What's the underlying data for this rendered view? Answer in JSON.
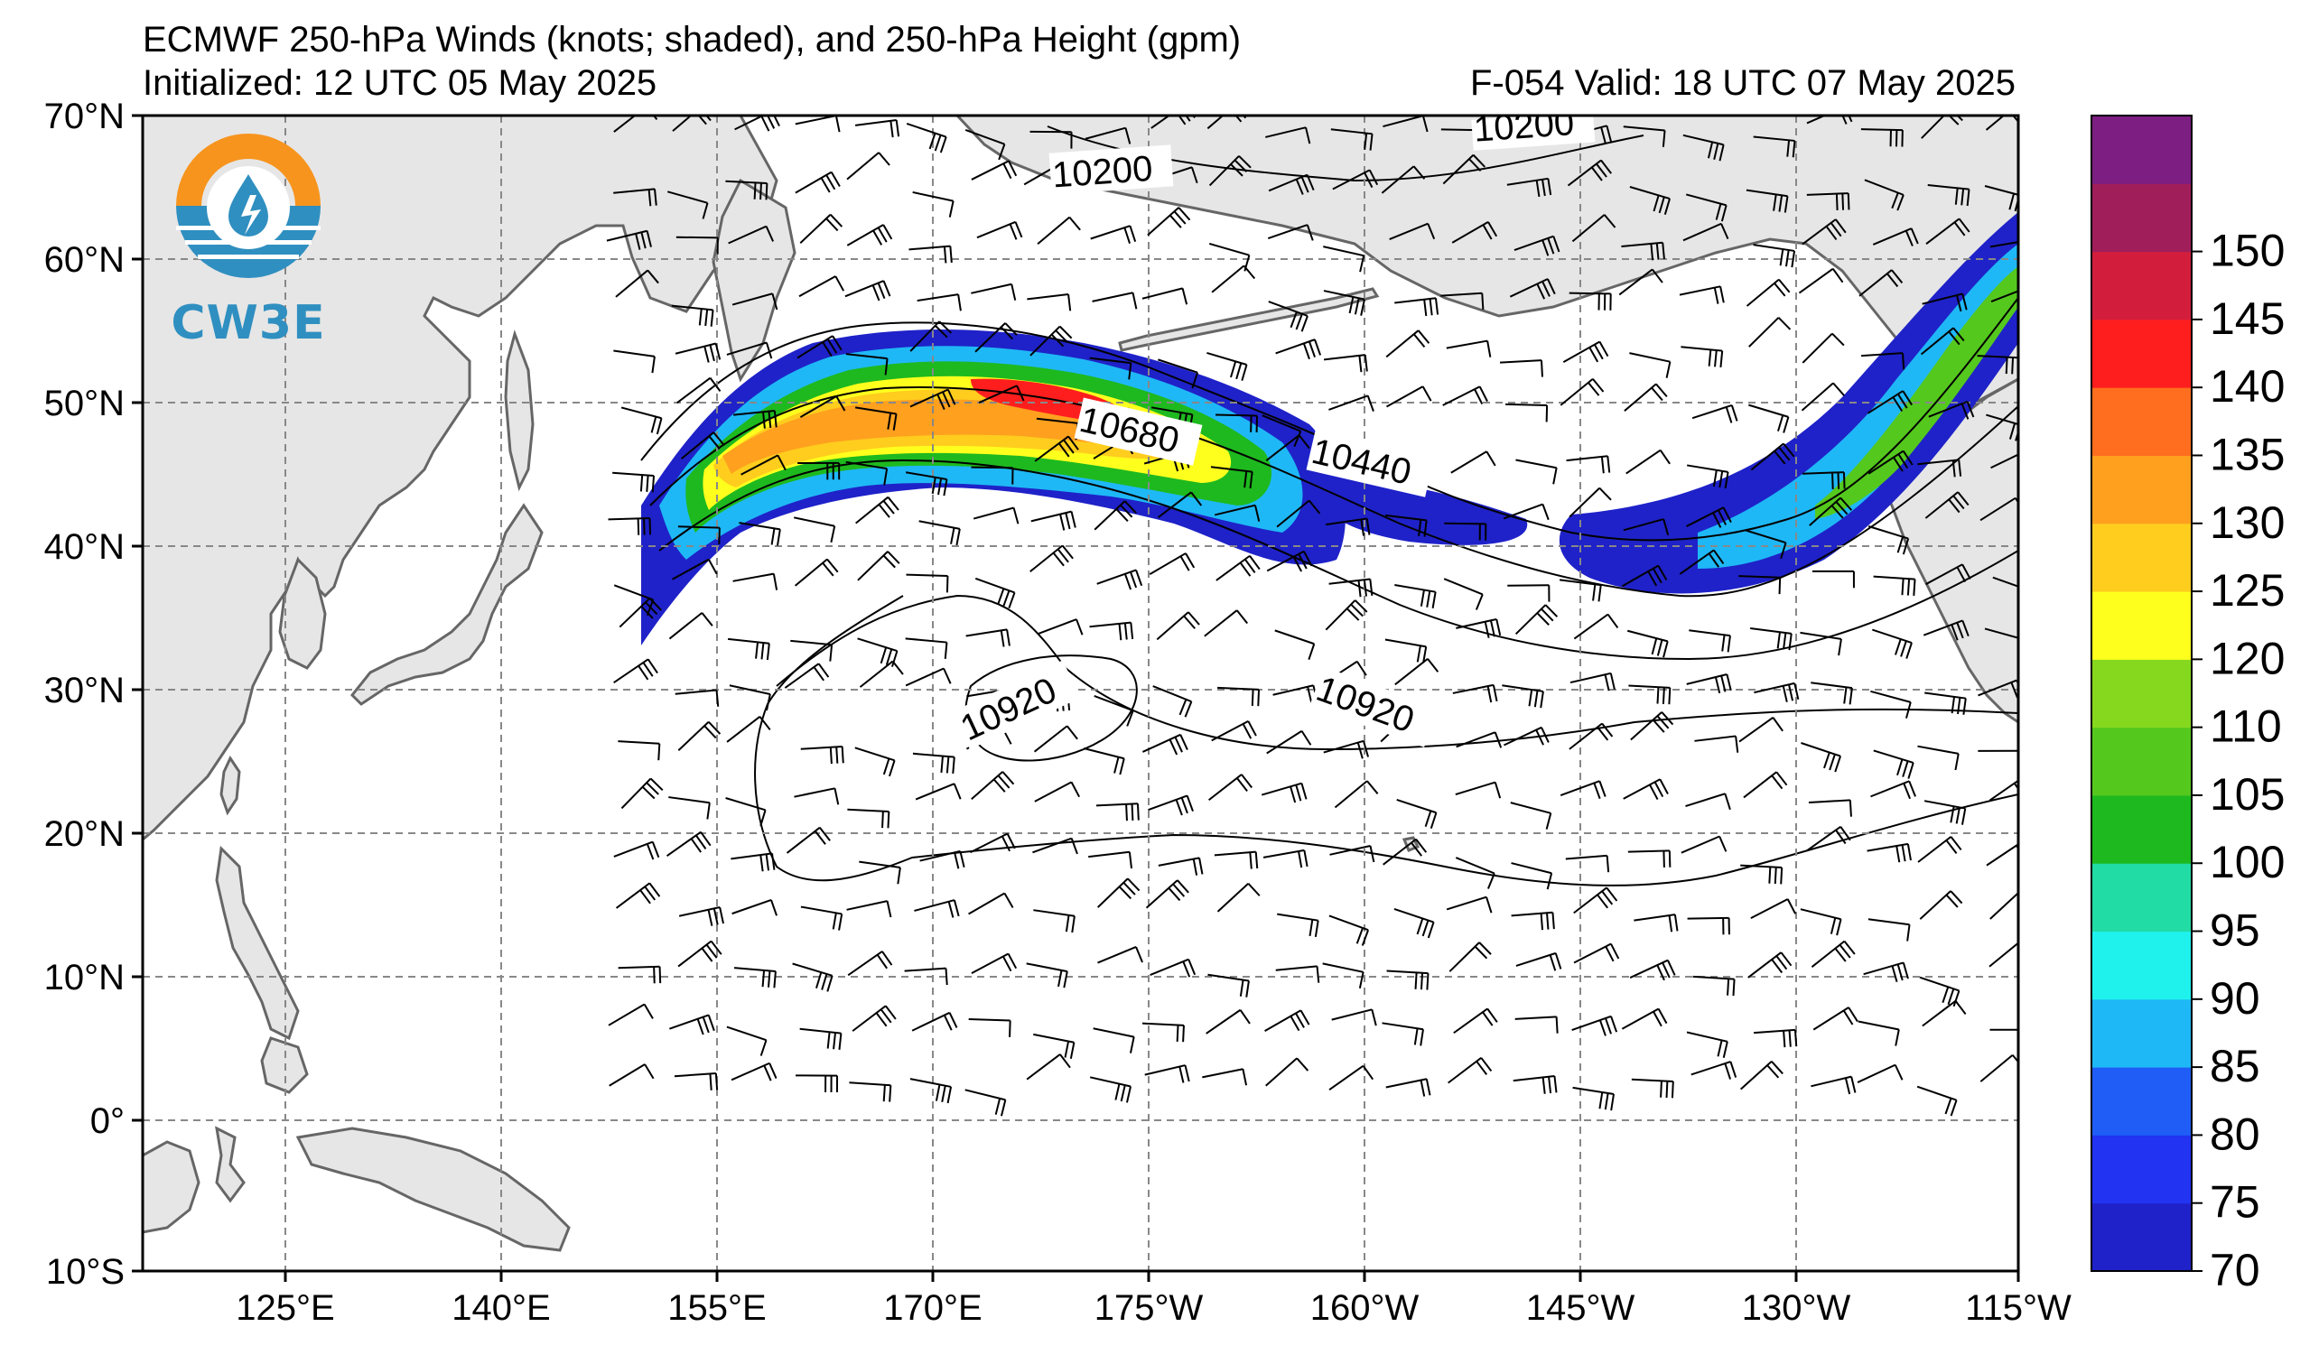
{
  "header": {
    "title": "ECMWF 250-hPa Winds (knots; shaded), and 250-hPa Height (gpm)",
    "initialized": "Initialized: 12 UTC 05 May 2025",
    "valid": "F-054  Valid: 18 UTC 07 May 2025"
  },
  "logo": {
    "text": "CW3E",
    "icon": "water-drop-sun-icon"
  },
  "axes": {
    "lat_labels": [
      "70°N",
      "60°N",
      "50°N",
      "40°N",
      "30°N",
      "20°N",
      "10°N",
      "0°",
      "10°S"
    ],
    "lon_labels": [
      "125°E",
      "140°E",
      "155°E",
      "170°E",
      "175°W",
      "160°W",
      "145°W",
      "130°W",
      "115°W"
    ]
  },
  "colorbar": {
    "levels": [
      70,
      75,
      80,
      85,
      90,
      95,
      100,
      105,
      110,
      120,
      125,
      130,
      135,
      140,
      145,
      150
    ],
    "tick_labels": [
      "70",
      "75",
      "80",
      "85",
      "90",
      "95",
      "100",
      "105",
      "110",
      "120",
      "125",
      "130",
      "135",
      "140",
      "145",
      "150"
    ],
    "colors": [
      "#1f22c8",
      "#2233f2",
      "#1f5df6",
      "#1fb8f6",
      "#1ff2ec",
      "#22dca5",
      "#1eb91e",
      "#55c81e",
      "#86d81e",
      "#ffff1e",
      "#ffcd1e",
      "#ffa01e",
      "#ff6e1e",
      "#ff1e1e",
      "#d21e3c",
      "#a01e5a",
      "#7d1e82"
    ]
  },
  "contour_labels": [
    "10200",
    "10200",
    "10680",
    "10440",
    "10920",
    "10920"
  ],
  "colors": {
    "land": "#e6e6e6",
    "coast": "#666666",
    "grid": "#888888",
    "contour": "#000000",
    "logo_orange": "#f7941d",
    "logo_blue": "#2f8fc0"
  }
}
